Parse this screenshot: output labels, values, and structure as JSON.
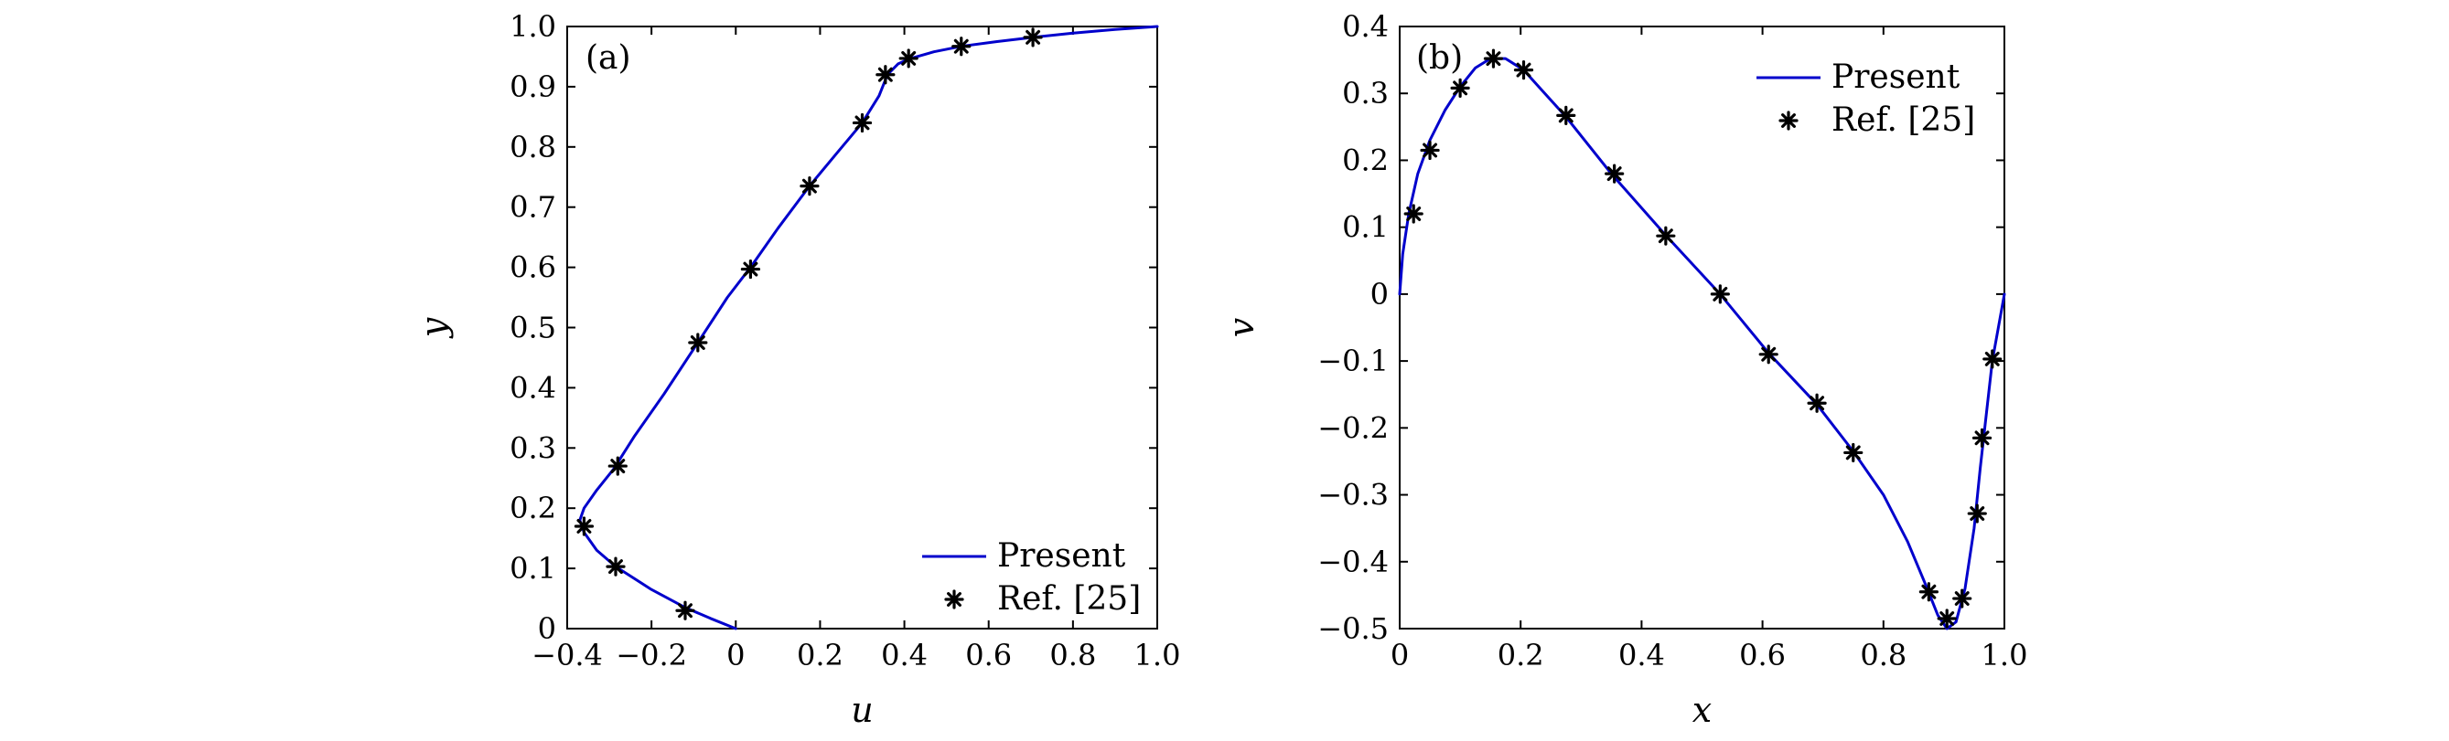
{
  "chart_data": [
    {
      "type": "line",
      "panel_label": "(a)",
      "xlabel": "u",
      "ylabel": "y",
      "xlim": [
        -0.4,
        1.0
      ],
      "ylim": [
        0,
        1.0
      ],
      "xticks": [
        -0.4,
        -0.2,
        0,
        0.2,
        0.4,
        0.6,
        0.8,
        1.0
      ],
      "xtick_labels": [
        "−0.4",
        "−0.2",
        "0",
        "0.2",
        "0.4",
        "0.6",
        "0.8",
        "1.0"
      ],
      "yticks": [
        0,
        0.1,
        0.2,
        0.3,
        0.4,
        0.5,
        0.6,
        0.7,
        0.8,
        0.9,
        1.0
      ],
      "ytick_labels": [
        "0",
        "0.1",
        "0.2",
        "0.3",
        "0.4",
        "0.5",
        "0.6",
        "0.7",
        "0.8",
        "0.9",
        "1.0"
      ],
      "legend_position": "bottom-right",
      "series": [
        {
          "name": "Present",
          "kind": "line",
          "color": "#0000cc",
          "points": [
            [
              0,
              0
            ],
            [
              -0.06,
              0.017
            ],
            [
              -0.12,
              0.035
            ],
            [
              -0.2,
              0.065
            ],
            [
              -0.285,
              0.103
            ],
            [
              -0.33,
              0.13
            ],
            [
              -0.36,
              0.16
            ],
            [
              -0.37,
              0.18
            ],
            [
              -0.36,
              0.2
            ],
            [
              -0.33,
              0.23
            ],
            [
              -0.29,
              0.265
            ],
            [
              -0.24,
              0.32
            ],
            [
              -0.17,
              0.39
            ],
            [
              -0.09,
              0.475
            ],
            [
              -0.02,
              0.55
            ],
            [
              0.035,
              0.6
            ],
            [
              0.1,
              0.665
            ],
            [
              0.175,
              0.735
            ],
            [
              0.24,
              0.79
            ],
            [
              0.3,
              0.84
            ],
            [
              0.34,
              0.885
            ],
            [
              0.36,
              0.92
            ],
            [
              0.385,
              0.938
            ],
            [
              0.415,
              0.947
            ],
            [
              0.47,
              0.958
            ],
            [
              0.535,
              0.967
            ],
            [
              0.62,
              0.975
            ],
            [
              0.705,
              0.982
            ],
            [
              0.8,
              0.989
            ],
            [
              0.9,
              0.995
            ],
            [
              1.0,
              1.0
            ]
          ]
        },
        {
          "name": "Ref. [25]",
          "kind": "scatter",
          "marker": "asterisk",
          "points": [
            [
              -0.12,
              0.03
            ],
            [
              -0.285,
              0.103
            ],
            [
              -0.36,
              0.17
            ],
            [
              -0.28,
              0.27
            ],
            [
              -0.09,
              0.475
            ],
            [
              0.035,
              0.597
            ],
            [
              0.175,
              0.735
            ],
            [
              0.3,
              0.84
            ],
            [
              0.355,
              0.92
            ],
            [
              0.41,
              0.947
            ],
            [
              0.535,
              0.967
            ],
            [
              0.705,
              0.982
            ]
          ]
        }
      ]
    },
    {
      "type": "line",
      "panel_label": "(b)",
      "xlabel": "x",
      "ylabel": "v",
      "xlim": [
        0,
        1.0
      ],
      "ylim": [
        -0.5,
        0.4
      ],
      "xticks": [
        0,
        0.2,
        0.4,
        0.6,
        0.8,
        1.0
      ],
      "xtick_labels": [
        "0",
        "0.2",
        "0.4",
        "0.6",
        "0.8",
        "1.0"
      ],
      "yticks": [
        -0.5,
        -0.4,
        -0.3,
        -0.2,
        -0.1,
        0,
        0.1,
        0.2,
        0.3,
        0.4
      ],
      "ytick_labels": [
        "−0.5",
        "−0.4",
        "−0.3",
        "−0.2",
        "−0.1",
        "0",
        "0.1",
        "0.2",
        "0.3",
        "0.4"
      ],
      "legend_position": "top-right",
      "series": [
        {
          "name": "Present",
          "kind": "line",
          "color": "#0000cc",
          "points": [
            [
              0,
              0
            ],
            [
              0.005,
              0.06
            ],
            [
              0.015,
              0.12
            ],
            [
              0.03,
              0.18
            ],
            [
              0.05,
              0.23
            ],
            [
              0.075,
              0.275
            ],
            [
              0.1,
              0.31
            ],
            [
              0.125,
              0.338
            ],
            [
              0.15,
              0.352
            ],
            [
              0.175,
              0.352
            ],
            [
              0.205,
              0.335
            ],
            [
              0.24,
              0.3
            ],
            [
              0.275,
              0.265
            ],
            [
              0.35,
              0.18
            ],
            [
              0.44,
              0.088
            ],
            [
              0.53,
              0.0
            ],
            [
              0.61,
              -0.088
            ],
            [
              0.69,
              -0.165
            ],
            [
              0.75,
              -0.235
            ],
            [
              0.8,
              -0.3
            ],
            [
              0.84,
              -0.37
            ],
            [
              0.87,
              -0.435
            ],
            [
              0.89,
              -0.48
            ],
            [
              0.905,
              -0.5
            ],
            [
              0.92,
              -0.49
            ],
            [
              0.935,
              -0.44
            ],
            [
              0.95,
              -0.35
            ],
            [
              0.96,
              -0.26
            ],
            [
              0.97,
              -0.18
            ],
            [
              0.98,
              -0.1
            ],
            [
              0.99,
              -0.05
            ],
            [
              1.0,
              0.0
            ]
          ]
        },
        {
          "name": "Ref. [25]",
          "kind": "scatter",
          "marker": "asterisk",
          "points": [
            [
              0.023,
              0.12
            ],
            [
              0.05,
              0.215
            ],
            [
              0.1,
              0.308
            ],
            [
              0.155,
              0.352
            ],
            [
              0.205,
              0.335
            ],
            [
              0.275,
              0.267
            ],
            [
              0.355,
              0.18
            ],
            [
              0.44,
              0.087
            ],
            [
              0.53,
              0.0
            ],
            [
              0.61,
              -0.09
            ],
            [
              0.69,
              -0.163
            ],
            [
              0.75,
              -0.237
            ],
            [
              0.875,
              -0.445
            ],
            [
              0.905,
              -0.485
            ],
            [
              0.93,
              -0.455
            ],
            [
              0.955,
              -0.328
            ],
            [
              0.963,
              -0.215
            ],
            [
              0.98,
              -0.097
            ]
          ]
        }
      ]
    }
  ]
}
